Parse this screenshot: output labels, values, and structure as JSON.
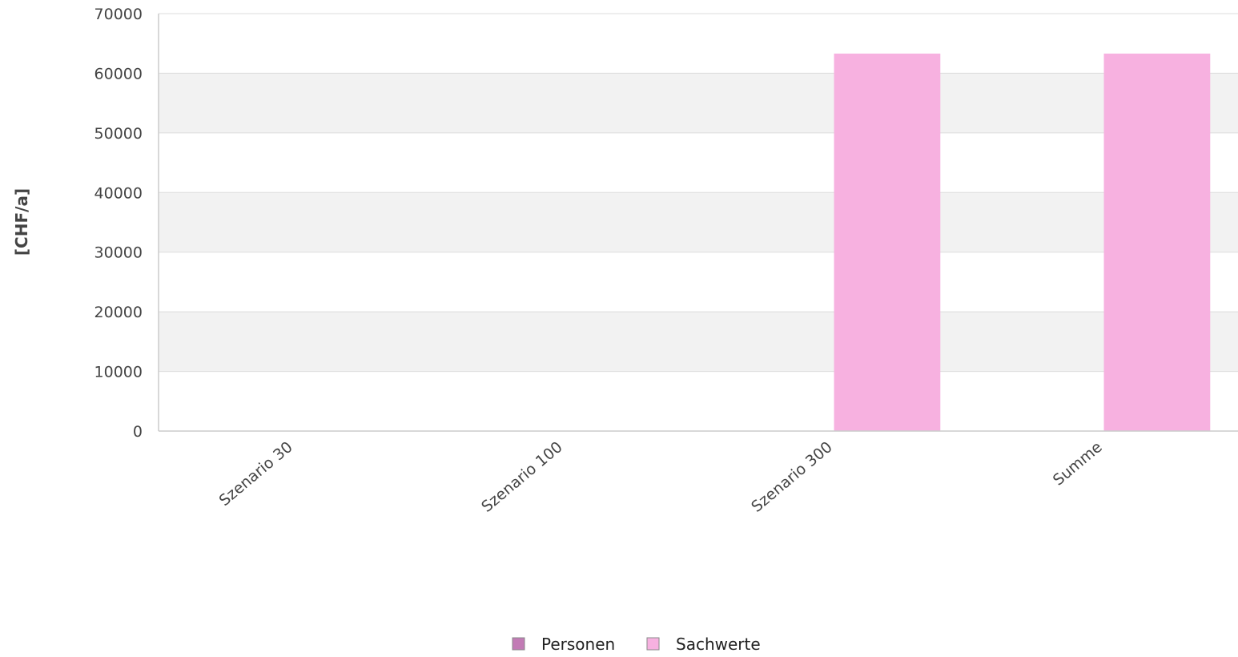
{
  "chart_data": {
    "type": "bar",
    "title": "",
    "xlabel": "",
    "ylabel": "[CHF/a]",
    "ylim": [
      0,
      70000
    ],
    "yticks": [
      0,
      10000,
      20000,
      30000,
      40000,
      50000,
      60000,
      70000
    ],
    "grid": true,
    "grid_style": "alternating horizontal bands",
    "legend_position": "bottom-center",
    "categories": [
      "Szenario 30",
      "Szenario 100",
      "Szenario 300",
      "Summe"
    ],
    "series": [
      {
        "name": "Personen",
        "color": "#c27bb5",
        "values": [
          0,
          0,
          0,
          0
        ]
      },
      {
        "name": "Sachwerte",
        "color": "#f7b1e0",
        "values": [
          0,
          0,
          63300,
          63300
        ]
      }
    ]
  },
  "colors": {
    "band": "#f2f2f2",
    "gridline": "#dcdcdc",
    "axis": "#cccccc"
  }
}
